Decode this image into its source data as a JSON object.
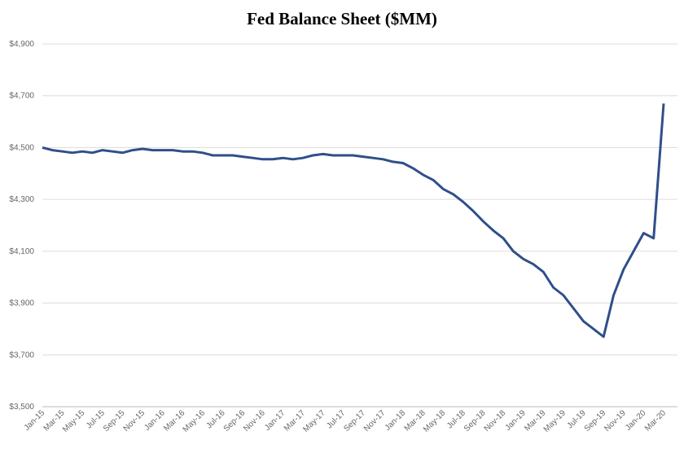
{
  "chart_data": {
    "type": "line",
    "title": "Fed Balance Sheet ($MM)",
    "categories": [
      "Jan-15",
      null,
      "Mar-15",
      null,
      "May-15",
      null,
      "Jul-15",
      null,
      "Sep-15",
      null,
      "Nov-15",
      null,
      "Jan-16",
      null,
      "Mar-16",
      null,
      "May-16",
      null,
      "Jul-16",
      null,
      "Sep-16",
      null,
      "Nov-16",
      null,
      "Jan-17",
      null,
      "Mar-17",
      null,
      "May-17",
      null,
      "Jul-17",
      null,
      "Sep-17",
      null,
      "Nov-17",
      null,
      "Jan-18",
      null,
      "Mar-18",
      null,
      "May-18",
      null,
      "Jul-18",
      null,
      "Sep-18",
      null,
      "Nov-18",
      null,
      "Jan-19",
      null,
      "Mar-19",
      null,
      "May-19",
      null,
      "Jul-19",
      null,
      "Sep-19",
      null,
      "Nov-19",
      null,
      "Jan-20",
      null,
      "Mar-20"
    ],
    "series": [
      {
        "color": "#2f4f8a",
        "values": [
          4500,
          4490,
          4485,
          4480,
          4485,
          4480,
          4490,
          4485,
          4480,
          4490,
          4495,
          4490,
          4490,
          4490,
          4485,
          4485,
          4480,
          4470,
          4470,
          4470,
          4465,
          4460,
          4455,
          4455,
          4460,
          4455,
          4460,
          4470,
          4475,
          4470,
          4470,
          4470,
          4465,
          4460,
          4455,
          4445,
          4440,
          4420,
          4395,
          4375,
          4340,
          4320,
          4290,
          4255,
          4215,
          4180,
          4150,
          4100,
          4070,
          4050,
          4020,
          3960,
          3930,
          3880,
          3830,
          3800,
          3770,
          3930,
          4030,
          4100,
          4170,
          4150,
          4670
        ]
      }
    ],
    "ylim": [
      3500,
      4900
    ],
    "yticks": [
      {
        "value": 3500,
        "label": "$3,500"
      },
      {
        "value": 3700,
        "label": "$3,700"
      },
      {
        "value": 3900,
        "label": "$3,900"
      },
      {
        "value": 4100,
        "label": "$4,100"
      },
      {
        "value": 4300,
        "label": "$4,300"
      },
      {
        "value": 4500,
        "label": "$4,500"
      },
      {
        "value": 4700,
        "label": "$4,700"
      },
      {
        "value": 4900,
        "label": "$4,900"
      }
    ],
    "grid": true
  }
}
